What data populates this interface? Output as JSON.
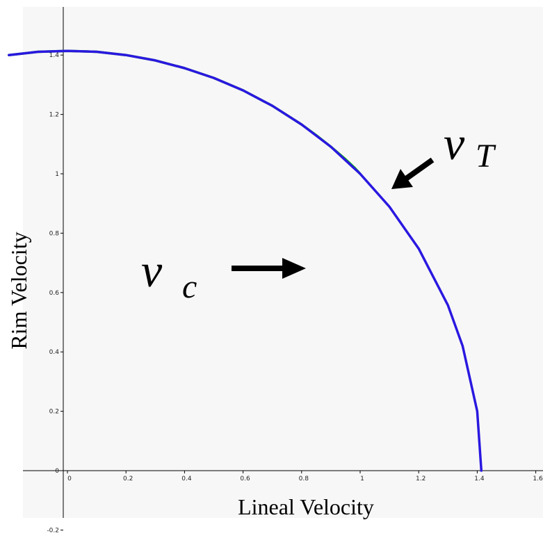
{
  "chart_data": {
    "type": "line",
    "title": "",
    "xlabel": "Lineal Velocity",
    "ylabel": "Rim Velocity",
    "xlim": [
      -0.18,
      1.62
    ],
    "ylim": [
      -0.2,
      1.56
    ],
    "x_ticks": [
      0,
      0.2,
      0.4,
      0.6,
      0.8,
      1,
      1.2,
      1.4,
      1.6
    ],
    "x_tick_labels": [
      "0",
      "0.2",
      "0.4",
      "0.6",
      "0.8",
      "1",
      "1.2",
      "1.4",
      "1.6"
    ],
    "y_ticks": [
      -0.2,
      0,
      0.2,
      0.4,
      0.6,
      0.8,
      1,
      1.2,
      1.4
    ],
    "y_tick_labels": [
      "-0.2",
      "0",
      "0.2",
      "0.4",
      "0.6",
      "0.8",
      "1",
      "1.2",
      "1.4"
    ],
    "grid": false,
    "background": "#f7f7f7",
    "series": [
      {
        "color": "#00b400",
        "x": [
          -0.2,
          -0.1,
          0,
          0.1,
          0.2,
          0.3,
          0.4,
          0.5,
          0.6,
          0.7,
          0.8,
          0.85,
          0.9,
          0.95,
          0.98,
          1.0
        ],
        "y": [
          1.4,
          1.411,
          1.414,
          1.411,
          1.4,
          1.382,
          1.356,
          1.323,
          1.281,
          1.229,
          1.166,
          1.13,
          1.091,
          1.049,
          1.021,
          1.0
        ]
      },
      {
        "color": "#2a18e0",
        "x": [
          -0.2,
          -0.1,
          0,
          0.1,
          0.2,
          0.3,
          0.4,
          0.5,
          0.6,
          0.7,
          0.8,
          0.9,
          1.0,
          1.1,
          1.2,
          1.3,
          1.35,
          1.4,
          1.414
        ],
        "y": [
          1.4,
          1.411,
          1.414,
          1.411,
          1.4,
          1.382,
          1.356,
          1.323,
          1.281,
          1.229,
          1.166,
          1.091,
          1.0,
          0.889,
          0.748,
          0.557,
          0.42,
          0.2,
          0.0
        ]
      }
    ],
    "annotations": [
      {
        "symbol": "v",
        "subscript": "c",
        "arrow_direction": "right"
      },
      {
        "symbol": "v",
        "subscript": "T",
        "arrow_direction": "down-left"
      }
    ]
  }
}
